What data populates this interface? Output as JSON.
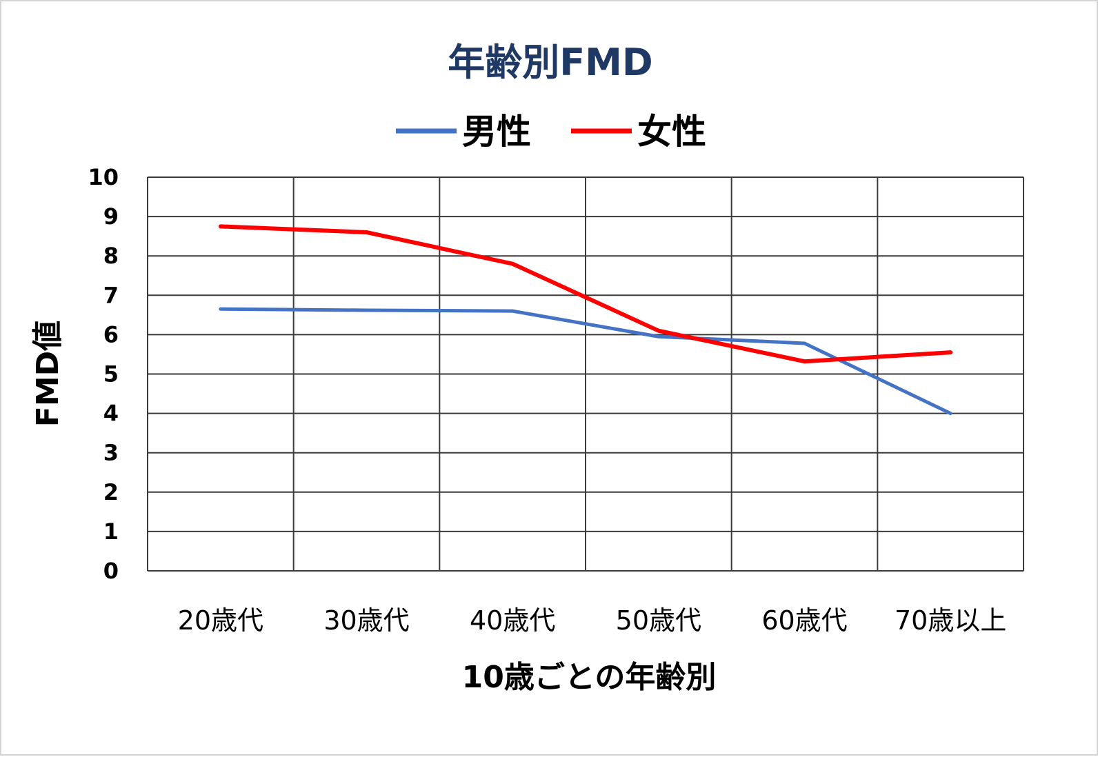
{
  "chart_data": {
    "type": "line",
    "title": "年齢別FMD",
    "xlabel": "10歳ごとの年齢別",
    "ylabel": "FMD値",
    "categories": [
      "20歳代",
      "30歳代",
      "40歳代",
      "50歳代",
      "60歳代",
      "70歳以上"
    ],
    "ylim": [
      0,
      10
    ],
    "yticks": [
      0,
      1,
      2,
      3,
      4,
      5,
      6,
      7,
      8,
      9,
      10
    ],
    "grid": true,
    "legend_position": "top",
    "series": [
      {
        "name": "男性",
        "color": "#4472c4",
        "values": [
          6.65,
          6.62,
          6.6,
          5.95,
          5.78,
          4.0
        ]
      },
      {
        "name": "女性",
        "color": "#ff0000",
        "values": [
          8.75,
          8.6,
          7.8,
          6.1,
          5.32,
          5.55
        ]
      }
    ],
    "title_color": "#1f3864",
    "gridline_color": "#3a3a3a"
  }
}
